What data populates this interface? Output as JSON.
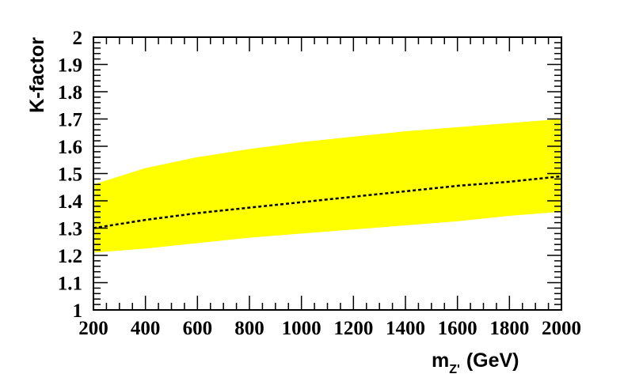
{
  "chart_data": {
    "type": "area",
    "title": "",
    "xlabel_main": "m",
    "xlabel_sub": "Z'",
    "xlabel_unit": "(GeV)",
    "ylabel": "K-factor",
    "xlim": [
      200,
      2000
    ],
    "ylim": [
      1,
      2
    ],
    "x_ticks": [
      200,
      400,
      600,
      800,
      1000,
      1200,
      1400,
      1600,
      1800,
      2000
    ],
    "x_tick_labels": [
      "200",
      "400",
      "600",
      "800",
      "1000",
      "1200",
      "1400",
      "1600",
      "1800",
      "2000"
    ],
    "y_ticks": [
      1,
      1.1,
      1.2,
      1.3,
      1.4,
      1.5,
      1.6,
      1.7,
      1.8,
      1.9,
      2
    ],
    "y_tick_labels": [
      "1",
      "1.1",
      "1.2",
      "1.3",
      "1.4",
      "1.5",
      "1.6",
      "1.7",
      "1.8",
      "1.9",
      "2"
    ],
    "grid": false,
    "band_color": "#ffff00",
    "line_color": "#000000",
    "series": [
      {
        "kind": "band",
        "x": [
          200,
          400,
          600,
          800,
          1000,
          1200,
          1400,
          1600,
          1800,
          2000
        ],
        "upper": [
          1.46,
          1.52,
          1.56,
          1.59,
          1.615,
          1.635,
          1.655,
          1.67,
          1.685,
          1.7
        ],
        "lower": [
          1.21,
          1.225,
          1.245,
          1.265,
          1.28,
          1.295,
          1.31,
          1.325,
          1.345,
          1.36
        ]
      },
      {
        "kind": "dashed-line",
        "x": [
          200,
          400,
          600,
          800,
          1000,
          1200,
          1400,
          1600,
          1800,
          2000
        ],
        "y": [
          1.3,
          1.33,
          1.355,
          1.375,
          1.395,
          1.415,
          1.435,
          1.455,
          1.47,
          1.49
        ]
      }
    ]
  }
}
